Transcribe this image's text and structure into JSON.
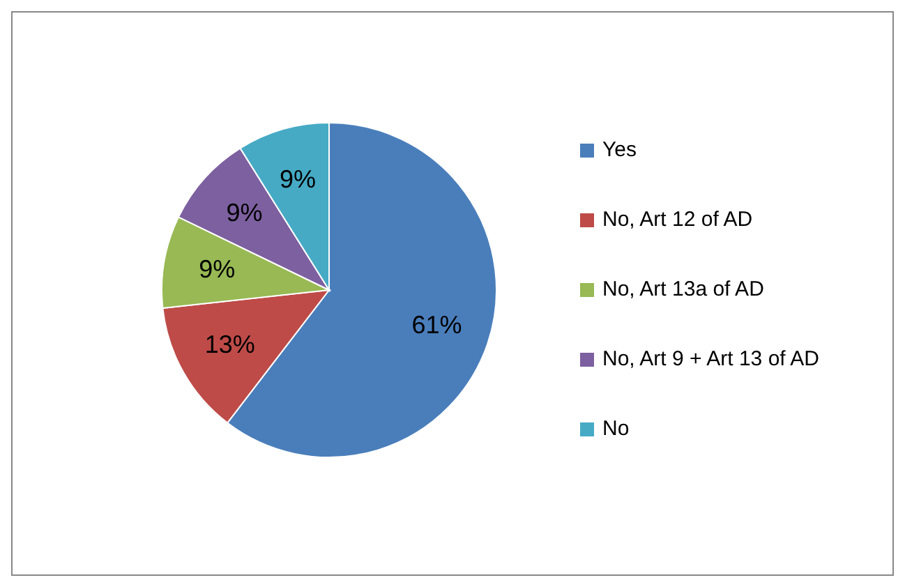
{
  "chart_data": {
    "type": "pie",
    "categories": [
      "Yes",
      "No, Art 12 of AD",
      "No, Art 13a of AD",
      "No, Art 9 + Art 13 of AD",
      "No"
    ],
    "values": [
      61,
      13,
      9,
      9,
      9
    ],
    "colors": [
      "#4a7ebb",
      "#be4b48",
      "#98b954",
      "#7d60a0",
      "#46aac5"
    ],
    "value_labels": [
      "61%",
      "13%",
      "9%",
      "9%",
      "9%"
    ],
    "legend": "right"
  }
}
